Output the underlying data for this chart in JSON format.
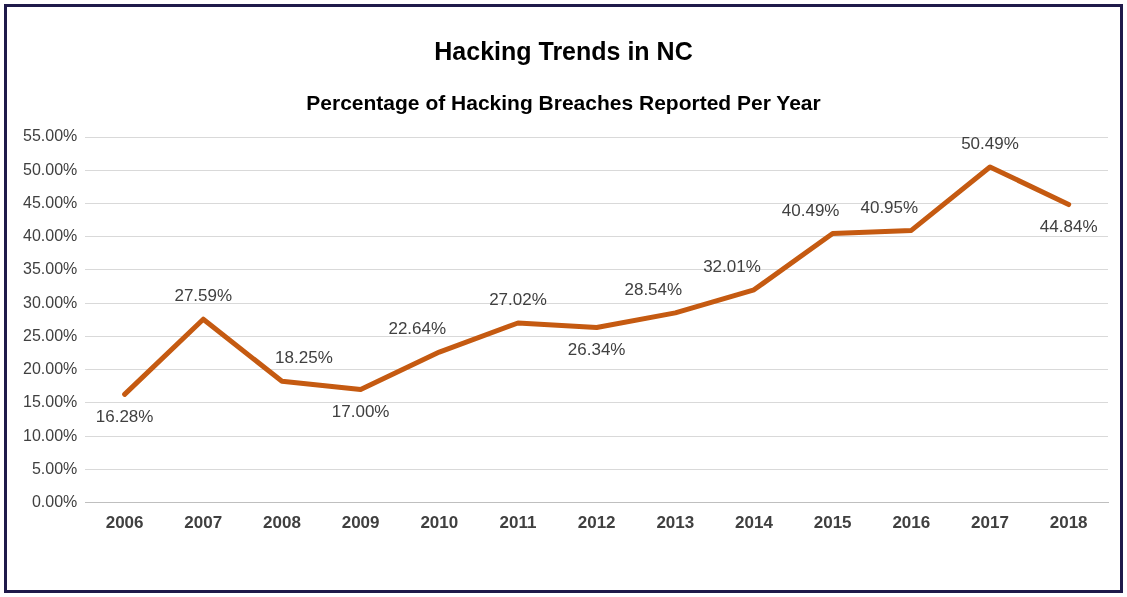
{
  "chart_data": {
    "type": "line",
    "title": "Hacking Trends in NC",
    "subtitle": "Percentage of Hacking Breaches Reported Per Year",
    "categories": [
      "2006",
      "2007",
      "2008",
      "2009",
      "2010",
      "2011",
      "2012",
      "2013",
      "2014",
      "2015",
      "2016",
      "2017",
      "2018"
    ],
    "series": [
      {
        "color": "#c55a11",
        "values": [
          16.28,
          27.59,
          18.25,
          17.0,
          22.64,
          27.02,
          26.34,
          28.54,
          32.01,
          40.49,
          40.95,
          50.49,
          44.84
        ],
        "value_labels": [
          "16.28%",
          "27.59%",
          "18.25%",
          "17.00%",
          "22.64%",
          "27.02%",
          "26.34%",
          "28.54%",
          "32.01%",
          "40.49%",
          "40.95%",
          "50.49%",
          "44.84%"
        ]
      }
    ],
    "ylim": [
      0,
      55
    ],
    "yticks": [
      {
        "value": 0,
        "label": "0.00%"
      },
      {
        "value": 5,
        "label": "5.00%"
      },
      {
        "value": 10,
        "label": "10.00%"
      },
      {
        "value": 15,
        "label": "15.00%"
      },
      {
        "value": 20,
        "label": "20.00%"
      },
      {
        "value": 25,
        "label": "25.00%"
      },
      {
        "value": 30,
        "label": "30.00%"
      },
      {
        "value": 35,
        "label": "35.00%"
      },
      {
        "value": 40,
        "label": "40.00%"
      },
      {
        "value": 45,
        "label": "45.00%"
      },
      {
        "value": 50,
        "label": "50.00%"
      },
      {
        "value": 55,
        "label": "55.00%"
      }
    ],
    "grid": "y",
    "legend": false,
    "marker": "none",
    "line_style": "solid"
  }
}
